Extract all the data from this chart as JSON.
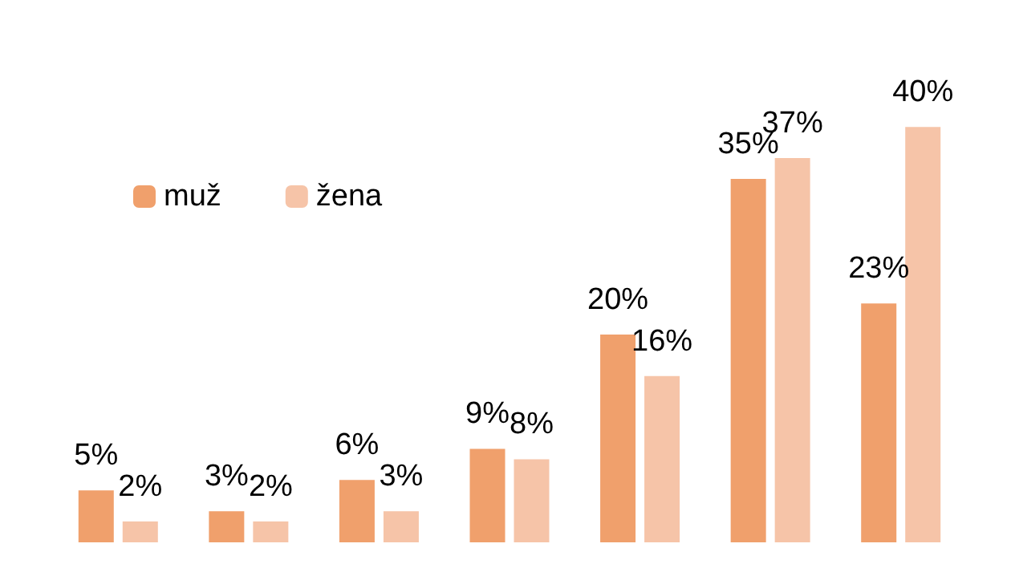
{
  "chart_data": {
    "type": "bar",
    "categories": [
      null,
      null,
      null,
      null,
      null,
      null,
      null
    ],
    "legend": "top left",
    "grid": false,
    "series": [
      {
        "name": "muž",
        "color": "#f0a06c",
        "values": [
          5,
          3,
          6,
          9,
          20,
          35,
          23
        ],
        "value_labels": [
          "5%",
          "3%",
          "6%",
          "9%",
          "20%",
          "35%",
          "23%"
        ]
      },
      {
        "name": "žena",
        "color": "#f6c4a8",
        "values": [
          2,
          2,
          3,
          8,
          16,
          37,
          40
        ],
        "value_labels": [
          "2%",
          "2%",
          "3%",
          "8%",
          "16%",
          "37%",
          "40%"
        ]
      }
    ]
  }
}
